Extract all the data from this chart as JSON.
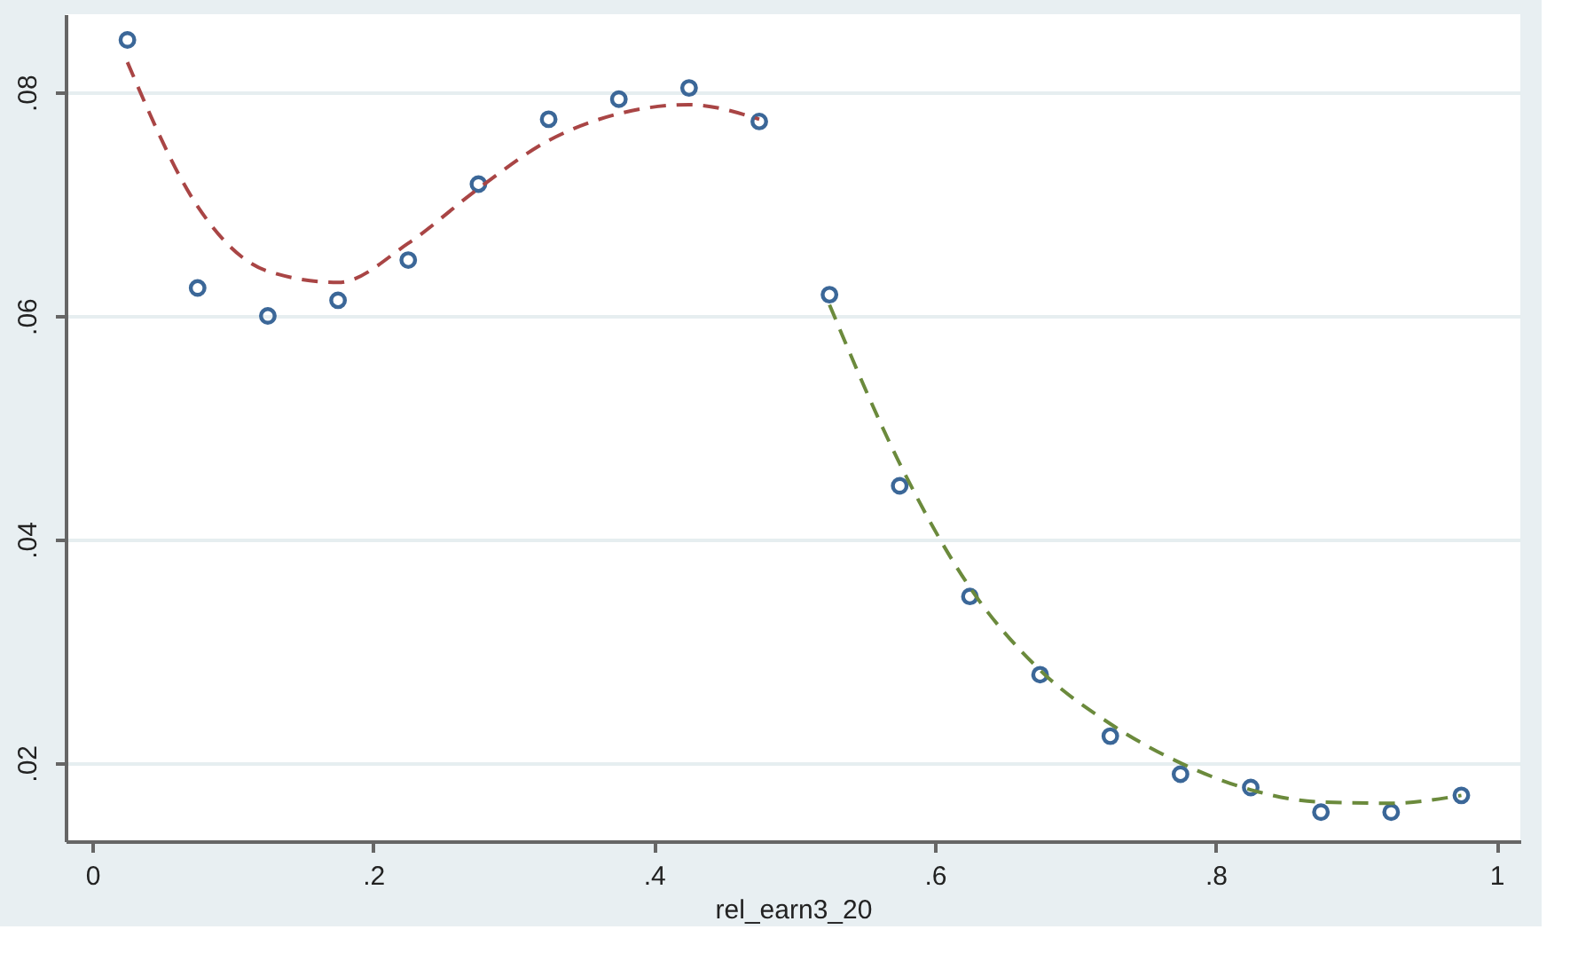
{
  "chart_data": {
    "type": "scatter",
    "xlabel": "rel_earn3_20",
    "x": [
      0.025,
      0.075,
      0.125,
      0.175,
      0.225,
      0.275,
      0.325,
      0.375,
      0.425,
      0.475,
      0.525,
      0.575,
      0.625,
      0.675,
      0.725,
      0.775,
      0.825,
      0.875,
      0.925,
      0.975
    ],
    "series": [
      {
        "color": "#3b6798",
        "marker": "circle",
        "values": [
          0.0847,
          0.0625,
          0.06,
          0.0614,
          0.065,
          0.0718,
          0.0776,
          0.0794,
          0.0804,
          0.0774,
          0.0619,
          0.0448,
          0.0349,
          0.0279,
          0.0224,
          0.019,
          0.0178,
          0.0156,
          0.0156,
          0.0171
        ]
      },
      {
        "type": "line",
        "color": "#a94545",
        "line_style": "dashed",
        "x": [
          0.025,
          0.075,
          0.125,
          0.175,
          0.225,
          0.275,
          0.325,
          0.375,
          0.425,
          0.475
        ],
        "values": [
          0.0827,
          0.0698,
          0.064,
          0.063,
          0.0665,
          0.0714,
          0.0757,
          0.0781,
          0.0789,
          0.0776
        ]
      },
      {
        "type": "line",
        "color": "#6b8a3c",
        "line_style": "dashed",
        "x": [
          0.525,
          0.575,
          0.625,
          0.675,
          0.725,
          0.775,
          0.825,
          0.875,
          0.925,
          0.975
        ],
        "values": [
          0.061,
          0.0468,
          0.0357,
          0.0283,
          0.0235,
          0.02,
          0.0176,
          0.0165,
          0.0164,
          0.0171
        ]
      }
    ],
    "xlim": [
      -0.019,
      1.017
    ],
    "xticks": [
      0,
      {
        "value": 0.2,
        "label": ".2"
      },
      {
        "value": 0.4,
        "label": ".4"
      },
      {
        "value": 0.6,
        "label": ".6"
      },
      {
        "value": 0.8,
        "label": ".8"
      },
      1
    ],
    "ylim": [
      0.013,
      0.087
    ],
    "yticks": [
      {
        "value": 0.02,
        "label": ".02"
      },
      {
        "value": 0.04,
        "label": ".04"
      },
      {
        "value": 0.06,
        "label": ".06"
      },
      {
        "value": 0.08,
        "label": ".08"
      }
    ],
    "grid": "y"
  }
}
